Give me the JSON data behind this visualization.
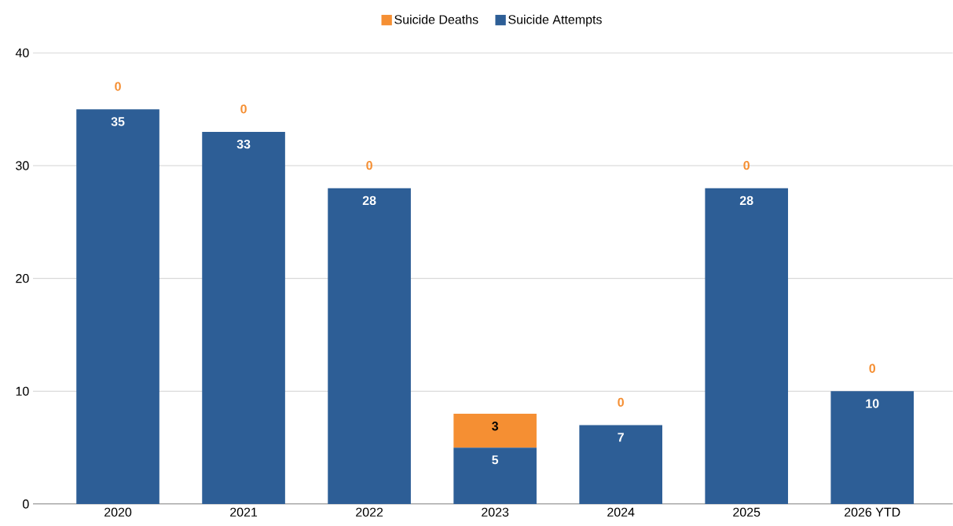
{
  "chart_data": {
    "type": "bar",
    "stacked": true,
    "categories": [
      "2020",
      "2021",
      "2022",
      "2023",
      "2024",
      "2025",
      "2026 YTD"
    ],
    "series": [
      {
        "name": "Suicide Attempts",
        "color": "#2d5e96",
        "values": [
          35,
          33,
          28,
          5,
          7,
          28,
          10
        ]
      },
      {
        "name": "Suicide Deaths",
        "color": "#f58f33",
        "values": [
          0,
          0,
          0,
          3,
          0,
          0,
          0
        ]
      }
    ],
    "ylim": [
      0,
      40
    ],
    "yticks": [
      0,
      10,
      20,
      30,
      40
    ],
    "grid": "y",
    "legend": "top",
    "data_labels": true
  }
}
